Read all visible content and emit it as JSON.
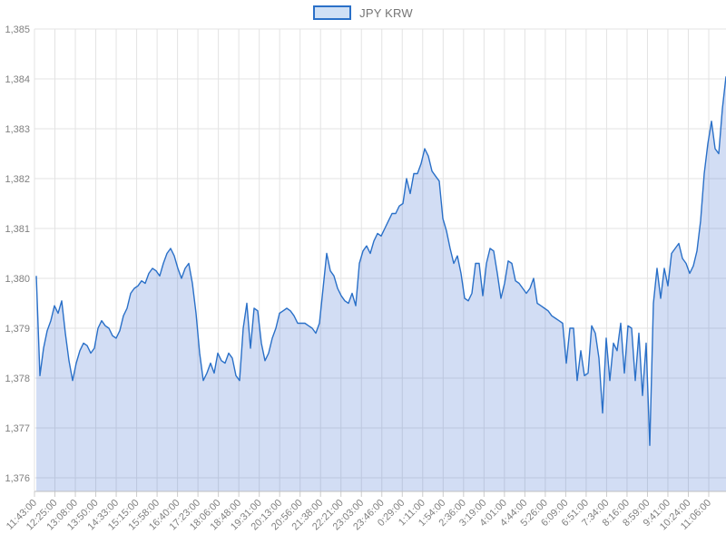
{
  "chart_data": {
    "type": "area",
    "title": "",
    "series_name": "JPY KRW",
    "legend_position": "top-center",
    "grid": true,
    "x_tick_labels": [
      "11:43:00",
      "12:25:00",
      "13:08:00",
      "13:50:00",
      "14:33:00",
      "15:15:00",
      "15:58:00",
      "16:40:00",
      "17:23:00",
      "18:06:00",
      "18:48:00",
      "19:31:00",
      "20:13:00",
      "20:56:00",
      "21:38:00",
      "22:21:00",
      "23:03:00",
      "23:46:00",
      "0:29:00",
      "1:11:00",
      "1:54:00",
      "2:36:00",
      "3:19:00",
      "4:01:00",
      "4:44:00",
      "5:26:00",
      "6:09:00",
      "6:51:00",
      "7:34:00",
      "8:16:00",
      "8:59:00",
      "9:41:00",
      "10:24:00",
      "11:06:00"
    ],
    "y_tick_labels": [
      "1,385",
      "1,384",
      "1,383",
      "1,382",
      "1,381",
      "1,380",
      "1,379",
      "1,378",
      "1,377",
      "1,376"
    ],
    "y_axis_max": 1385,
    "y_axis_min_visible": 1375.7,
    "values": [
      1380.05,
      1378.05,
      1378.6,
      1378.95,
      1379.15,
      1379.45,
      1379.3,
      1379.55,
      1378.9,
      1378.35,
      1377.95,
      1378.3,
      1378.55,
      1378.7,
      1378.65,
      1378.5,
      1378.6,
      1379.0,
      1379.15,
      1379.05,
      1379.0,
      1378.85,
      1378.8,
      1378.95,
      1379.25,
      1379.4,
      1379.7,
      1379.8,
      1379.85,
      1379.95,
      1379.9,
      1380.1,
      1380.2,
      1380.15,
      1380.05,
      1380.3,
      1380.5,
      1380.6,
      1380.45,
      1380.2,
      1380.0,
      1380.2,
      1380.3,
      1379.9,
      1379.3,
      1378.5,
      1377.95,
      1378.1,
      1378.3,
      1378.1,
      1378.5,
      1378.35,
      1378.3,
      1378.5,
      1378.4,
      1378.05,
      1377.95,
      1379.0,
      1379.5,
      1378.6,
      1379.4,
      1379.35,
      1378.7,
      1378.35,
      1378.5,
      1378.8,
      1379.0,
      1379.3,
      1379.35,
      1379.4,
      1379.35,
      1379.25,
      1379.1,
      1379.1,
      1379.1,
      1379.05,
      1379.0,
      1378.9,
      1379.1,
      1379.8,
      1380.5,
      1380.15,
      1380.05,
      1379.8,
      1379.65,
      1379.55,
      1379.5,
      1379.7,
      1379.45,
      1380.3,
      1380.55,
      1380.65,
      1380.5,
      1380.75,
      1380.9,
      1380.85,
      1381.0,
      1381.15,
      1381.3,
      1381.3,
      1381.45,
      1381.5,
      1382.0,
      1381.7,
      1382.1,
      1382.1,
      1382.3,
      1382.6,
      1382.45,
      1382.15,
      1382.05,
      1381.95,
      1381.2,
      1380.95,
      1380.6,
      1380.3,
      1380.45,
      1380.1,
      1379.6,
      1379.55,
      1379.7,
      1380.3,
      1380.3,
      1379.65,
      1380.3,
      1380.6,
      1380.55,
      1380.1,
      1379.6,
      1379.9,
      1380.35,
      1380.3,
      1379.95,
      1379.9,
      1379.8,
      1379.7,
      1379.8,
      1380.0,
      1379.5,
      1379.45,
      1379.4,
      1379.35,
      1379.25,
      1379.2,
      1379.15,
      1379.1,
      1378.3,
      1379.0,
      1379.0,
      1377.95,
      1378.55,
      1378.05,
      1378.1,
      1379.05,
      1378.9,
      1378.4,
      1377.3,
      1378.8,
      1377.95,
      1378.7,
      1378.55,
      1379.1,
      1378.1,
      1379.05,
      1379.0,
      1377.95,
      1378.9,
      1377.65,
      1378.7,
      1376.65,
      1379.5,
      1380.2,
      1379.6,
      1380.2,
      1379.85,
      1380.5,
      1380.6,
      1380.7,
      1380.4,
      1380.3,
      1380.1,
      1380.25,
      1380.55,
      1381.15,
      1382.1,
      1382.7,
      1383.15,
      1382.6,
      1382.5,
      1383.4,
      1384.05
    ],
    "colors": {
      "line": "#2a70c8",
      "fill": "rgba(51,102,204,0.22)",
      "gridline": "#e3e3e3",
      "axis_line": "#c0c0c0",
      "tick_mark": "#cccccc",
      "axis_text": "#808080",
      "legend_text": "#757575",
      "legend_swatch_fill": "#cfe0f5",
      "background": "#ffffff"
    }
  }
}
